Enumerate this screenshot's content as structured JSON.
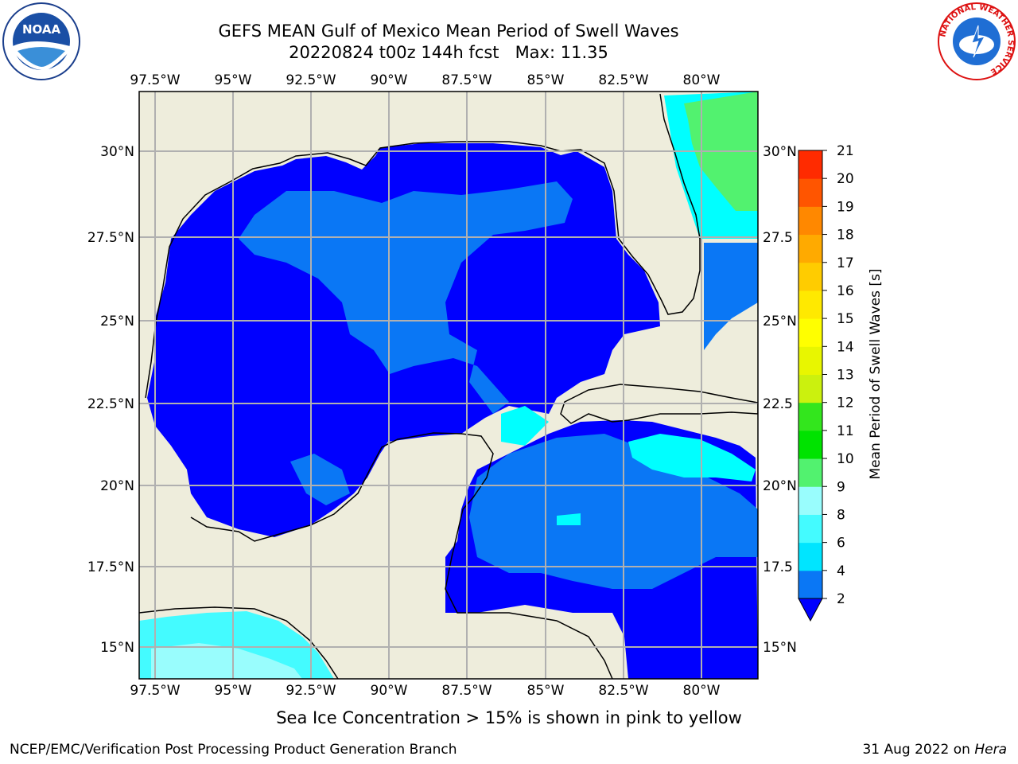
{
  "title": {
    "line1": "GEFS MEAN Gulf of Mexico Mean Period of Swell Waves",
    "line2": "20220824 t00z 144h fcst   Max: 11.35"
  },
  "map": {
    "lon_ticks": [
      "97.5°W",
      "95°W",
      "92.5°W",
      "90°W",
      "87.5°W",
      "85°W",
      "82.5°W",
      "80°W"
    ],
    "lat_ticks_left": [
      "30°N",
      "27.5°N",
      "25°N",
      "22.5°N",
      "20°N",
      "17.5°N",
      "15°N"
    ],
    "lat_ticks_right": [
      "30°N",
      "27.5",
      "25°N",
      "22.5",
      "20°N",
      "17.5",
      "15°N"
    ],
    "land_color": "#eeeddc",
    "grid_color": "#b0b0b0"
  },
  "colorbar": {
    "label": "Mean Period of Swell Waves [s]",
    "tick_labels": [
      "2",
      "4",
      "6",
      "8",
      "9",
      "10",
      "11",
      "12",
      "13",
      "14",
      "15",
      "16",
      "17",
      "18",
      "19",
      "20",
      "21"
    ],
    "colors": [
      "#0a77f5",
      "#00e5ff",
      "#44fbff",
      "#99fdfd",
      "#52f26f",
      "#00e300",
      "#33e61d",
      "#cbf10e",
      "#e8f600",
      "#ffff00",
      "#ffe900",
      "#ffcc00",
      "#ffaa00",
      "#ff8800",
      "#ff5500",
      "#ff2b00"
    ],
    "extend_color": "#0000ff"
  },
  "legend_colors": {
    "level_2_4": "#0000ff",
    "level_4_6": "#0a77f5",
    "level_6_8": "#00ffff",
    "level_8_9": "#99fdfd",
    "level_9_10": "#52f26f"
  },
  "note": "Sea Ice Concentration > 15% is shown in pink to yellow",
  "footer": {
    "left": "NCEP/EMC/Verification Post Processing Product Generation Branch",
    "right_prefix": "31 Aug 2022 on ",
    "right_host": "Hera"
  },
  "logos": {
    "noaa_text": "NOAA",
    "nws_ring_text": "NATIONAL WEATHER SERVICE"
  }
}
